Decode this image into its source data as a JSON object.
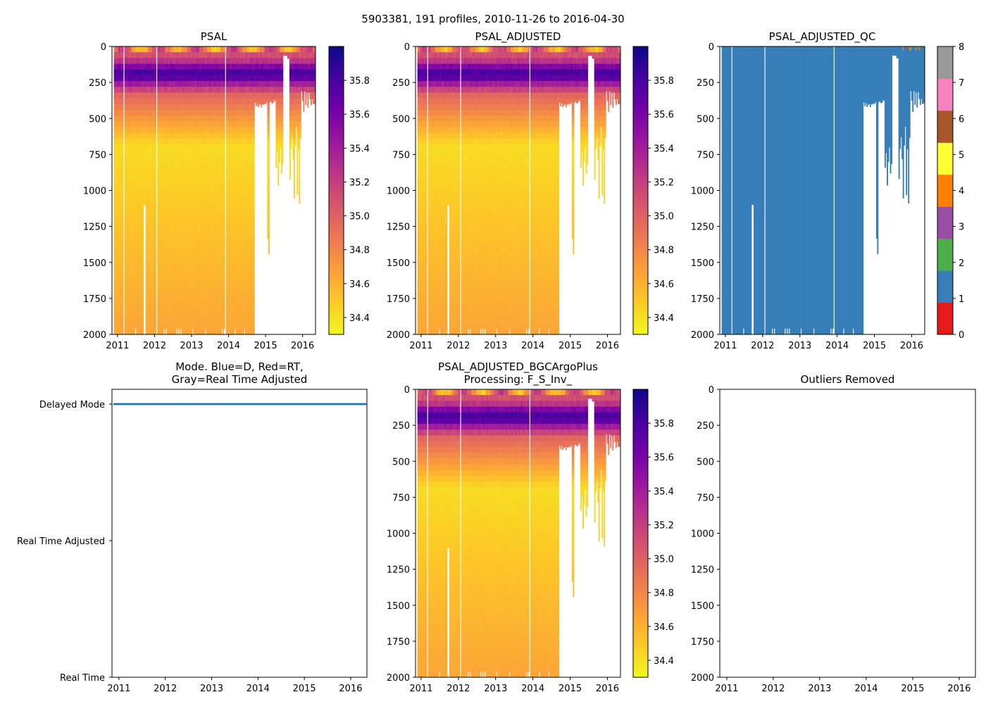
{
  "figure": {
    "suptitle": "5903381, 191 profiles, 2010-11-26 to 2016-04-30"
  },
  "colors": {
    "plasma": [
      "#f0f921",
      "#fdca26",
      "#fb9f3a",
      "#ed7953",
      "#d8576b",
      "#bd3786",
      "#9c179e",
      "#7201a8",
      "#46039f",
      "#0d0887"
    ],
    "qc": [
      "#e41a1c",
      "#377eb8",
      "#4daf4a",
      "#984ea3",
      "#ff7f00",
      "#ffff33",
      "#a65628",
      "#f781bf",
      "#999999"
    ],
    "mode_marker": "#1f77b4"
  },
  "chart_data": [
    {
      "id": "psal",
      "type": "heatmap",
      "title": "PSAL",
      "xlabel": "",
      "ylabel": "",
      "xlim": [
        2010.85,
        2016.35
      ],
      "ylim": [
        2000,
        0
      ],
      "xticks": [
        "2011",
        "2012",
        "2013",
        "2014",
        "2015",
        "2016"
      ],
      "yticks": [
        "0",
        "250",
        "500",
        "750",
        "1000",
        "1250",
        "1500",
        "1750",
        "2000"
      ],
      "colorbar": {
        "min": 34.3,
        "max": 36.0,
        "ticks": [
          "34.4",
          "34.6",
          "34.8",
          "35.0",
          "35.2",
          "35.4",
          "35.6",
          "35.8"
        ]
      },
      "profile_range": [
        "2010-11-26",
        "2016-04-30"
      ],
      "profile_count": 191
    },
    {
      "id": "psal_adjusted",
      "type": "heatmap",
      "title": "PSAL_ADJUSTED",
      "xlabel": "",
      "ylabel": "",
      "xlim": [
        2010.85,
        2016.35
      ],
      "ylim": [
        2000,
        0
      ],
      "xticks": [
        "2011",
        "2012",
        "2013",
        "2014",
        "2015",
        "2016"
      ],
      "yticks": [
        "0",
        "250",
        "500",
        "750",
        "1000",
        "1250",
        "1500",
        "1750",
        "2000"
      ],
      "colorbar": {
        "min": 34.3,
        "max": 36.0,
        "ticks": [
          "34.4",
          "34.6",
          "34.8",
          "35.0",
          "35.2",
          "35.4",
          "35.6",
          "35.8"
        ]
      }
    },
    {
      "id": "psal_adjusted_qc",
      "type": "heatmap",
      "title": "PSAL_ADJUSTED_QC",
      "xlabel": "",
      "ylabel": "",
      "xlim": [
        2010.85,
        2016.35
      ],
      "ylim": [
        2000,
        0
      ],
      "xticks": [
        "2011",
        "2012",
        "2013",
        "2014",
        "2015",
        "2016"
      ],
      "yticks": [
        "0",
        "250",
        "500",
        "750",
        "1000",
        "1250",
        "1500",
        "1750",
        "2000"
      ],
      "colorbar": {
        "min": 0,
        "max": 8,
        "ticks": [
          "0",
          "1",
          "2",
          "3",
          "4",
          "5",
          "6",
          "7",
          "8"
        ]
      },
      "dominant_flag": 1
    },
    {
      "id": "mode",
      "type": "scatter",
      "title_lines": [
        "Mode. Blue=D, Red=RT,",
        "Gray=Real Time Adjusted"
      ],
      "xlabel": "",
      "ylabel": "",
      "xlim": [
        2010.85,
        2016.35
      ],
      "xticks": [
        "2011",
        "2012",
        "2013",
        "2014",
        "2015",
        "2016"
      ],
      "ycategories": [
        "Real Time",
        "Real Time Adjusted",
        "Delayed Mode"
      ],
      "points": {
        "mode": "Delayed Mode",
        "x_start": 2010.9,
        "x_end": 2016.33,
        "count": 191
      }
    },
    {
      "id": "bgc",
      "type": "heatmap",
      "title_lines": [
        "PSAL_ADJUSTED_BGCArgoPlus",
        "Processing: F_S_Inv_"
      ],
      "xlabel": "",
      "ylabel": "",
      "xlim": [
        2010.85,
        2016.35
      ],
      "ylim": [
        2000,
        0
      ],
      "xticks": [
        "2011",
        "2012",
        "2013",
        "2014",
        "2015",
        "2016"
      ],
      "yticks": [
        "0",
        "250",
        "500",
        "750",
        "1000",
        "1250",
        "1500",
        "1750",
        "2000"
      ],
      "colorbar": {
        "min": 34.3,
        "max": 36.0,
        "ticks": [
          "34.4",
          "34.6",
          "34.8",
          "35.0",
          "35.2",
          "35.4",
          "35.6",
          "35.8"
        ]
      }
    },
    {
      "id": "outliers",
      "type": "scatter",
      "title": "Outliers Removed",
      "xlabel": "",
      "ylabel": "",
      "xlim": [
        2010.85,
        2016.35
      ],
      "ylim": [
        2000,
        0
      ],
      "xticks": [
        "2011",
        "2012",
        "2013",
        "2014",
        "2015",
        "2016"
      ],
      "yticks": [
        "0",
        "250",
        "500",
        "750",
        "1000",
        "1250",
        "1500",
        "1750",
        "2000"
      ],
      "points": []
    }
  ]
}
